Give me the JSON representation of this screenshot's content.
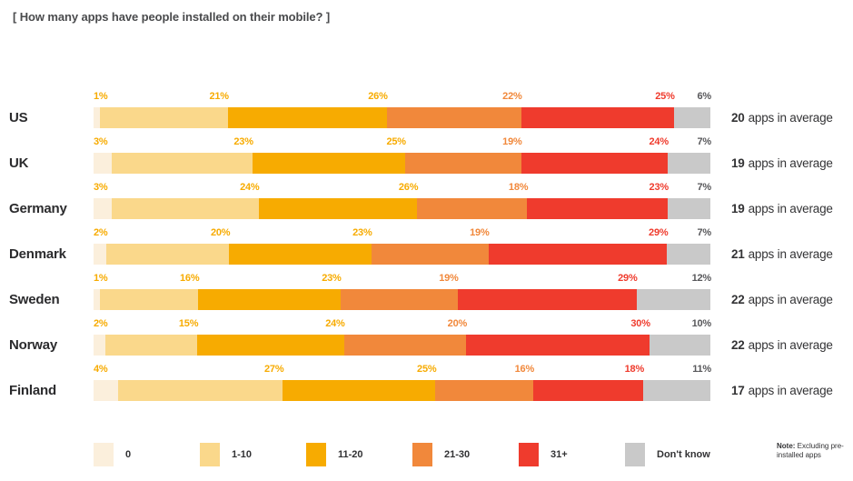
{
  "title": "[ How many apps have people installed on their mobile? ]",
  "note": {
    "label": "Note:",
    "text": " Excluding pre-installed apps"
  },
  "chart_data": {
    "type": "bar",
    "subtype": "horizontal-stacked-100pct",
    "unit": "%",
    "categories": [
      "0",
      "1-10",
      "11-20",
      "21-30",
      "31+",
      "Don't know"
    ],
    "palette": [
      "#FBEFDC",
      "#FAD88B",
      "#F7AB01",
      "#F1883B",
      "#EF3B2D",
      "#C9C9C9"
    ],
    "label_palette": [
      "#F7AB01",
      "#F7AB01",
      "#F7AB01",
      "#F1883B",
      "#EF3B2D",
      "#58585B"
    ],
    "legend_position": "bottom",
    "average_suffix": "apps in average",
    "rows": [
      {
        "country": "US",
        "values": [
          1,
          21,
          26,
          22,
          25,
          6
        ],
        "average": "20"
      },
      {
        "country": "UK",
        "values": [
          3,
          23,
          25,
          19,
          24,
          7
        ],
        "average": "19"
      },
      {
        "country": "Germany",
        "values": [
          3,
          24,
          26,
          18,
          23,
          7
        ],
        "average": "19"
      },
      {
        "country": "Denmark",
        "values": [
          2,
          20,
          23,
          19,
          29,
          7
        ],
        "average": "21"
      },
      {
        "country": "Sweden",
        "values": [
          1,
          16,
          23,
          19,
          29,
          12
        ],
        "average": "22"
      },
      {
        "country": "Norway",
        "values": [
          2,
          15,
          24,
          20,
          30,
          10
        ],
        "average": "22"
      },
      {
        "country": "Finland",
        "values": [
          4,
          27,
          25,
          16,
          18,
          11
        ],
        "average": "17"
      }
    ]
  }
}
